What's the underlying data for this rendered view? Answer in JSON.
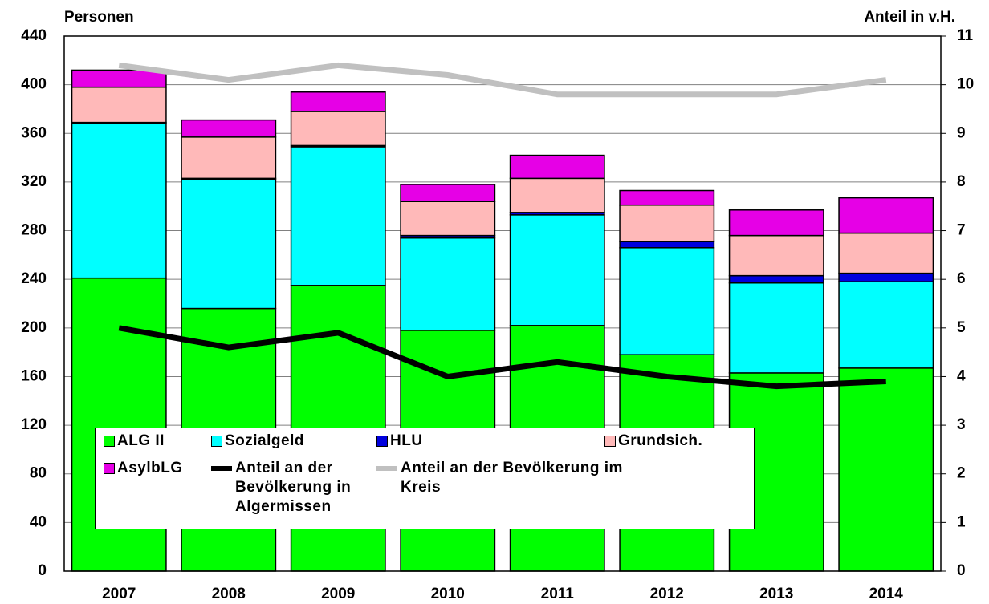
{
  "chart_data": {
    "type": "bar",
    "stacked": true,
    "y_label": "Personen",
    "y2_label": "Anteil in v.H.",
    "categories": [
      "2007",
      "2008",
      "2009",
      "2010",
      "2011",
      "2012",
      "2013",
      "2014"
    ],
    "series": [
      {
        "name": "ALG II",
        "color": "#00ff00",
        "values": [
          241,
          216,
          235,
          198,
          202,
          178,
          163,
          167
        ]
      },
      {
        "name": "Sozialgeld",
        "color": "#00ffff",
        "values": [
          127,
          106,
          114,
          76,
          91,
          88,
          74,
          71
        ]
      },
      {
        "name": "HLU",
        "color": "#0000dd",
        "values": [
          1,
          1,
          1,
          2,
          2,
          5,
          6,
          7
        ]
      },
      {
        "name": "Grundsich.",
        "color": "#ffb9b9",
        "values": [
          29,
          34,
          28,
          28,
          28,
          30,
          33,
          33
        ]
      },
      {
        "name": "AsylbLG",
        "color": "#e600e6",
        "values": [
          14,
          14,
          16,
          14,
          19,
          12,
          21,
          29
        ]
      },
      {
        "name": "Anteil an der Bevölkerung in Algermissen",
        "color": "#000000",
        "type": "line",
        "axis": "y2",
        "values": [
          5.0,
          4.6,
          4.9,
          4.0,
          4.3,
          4.0,
          3.8,
          3.9
        ]
      },
      {
        "name": "Anteil an der Bevölkerung im Kreis",
        "color": "#c0c0c0",
        "type": "line",
        "axis": "y2",
        "values": [
          10.4,
          10.1,
          10.4,
          10.2,
          9.8,
          9.8,
          9.8,
          10.1
        ]
      }
    ],
    "ylim": [
      0,
      440
    ],
    "yticks": [
      0,
      40,
      80,
      120,
      160,
      200,
      240,
      280,
      320,
      360,
      400,
      440
    ],
    "y2lim": [
      0,
      11
    ],
    "y2ticks": [
      0,
      1,
      2,
      3,
      4,
      5,
      6,
      7,
      8,
      9,
      10,
      11
    ],
    "grid": true
  }
}
